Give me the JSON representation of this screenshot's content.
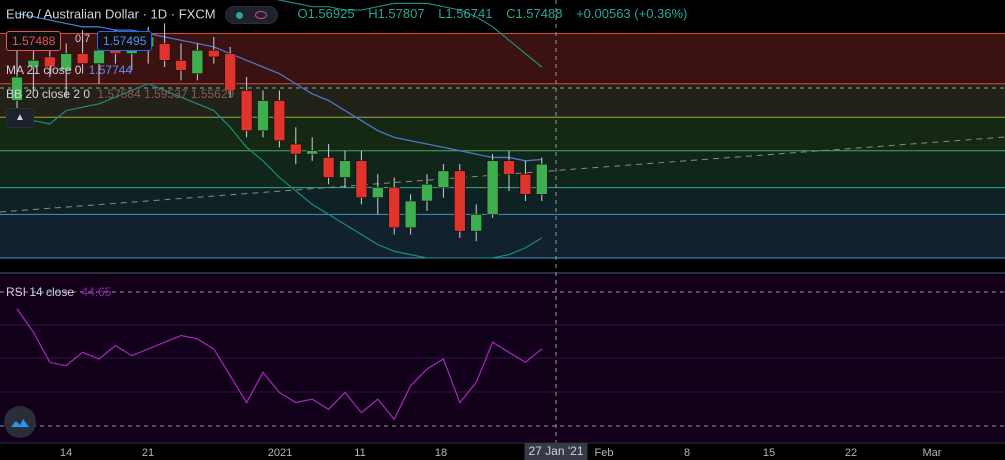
{
  "header": {
    "symbol": "Euro / Australian Dollar",
    "interval": "1D",
    "exchange": "FXCM",
    "open": "O1.56925",
    "high": "H1.57807",
    "low": "L1.56741",
    "close": "C1.57488",
    "change": "+0.00563 (+0.36%)",
    "bid": "1.57488",
    "spread": "0.7",
    "ask": "1.57495"
  },
  "indicators": {
    "ma_label": "MA 21 close 0",
    "ma_value": "1.57744",
    "bb_label": "BB 20 close 2 0",
    "bb_values": "1.57584  1.59537  1.55629",
    "rsi_label": "RSI 14 close",
    "rsi_value": "44.65"
  },
  "colors": {
    "up": "#3fae4f",
    "down": "#e0332c",
    "ma": "#4a78c8",
    "bb": "#1f8a7f",
    "rsi": "#9c27b0"
  },
  "x_axis": {
    "labels": [
      "14",
      "21",
      "2021",
      "11",
      "18",
      "Feb",
      "8",
      "15",
      "22",
      "Mar"
    ],
    "crosshair_label": "27 Jan '21"
  },
  "chart_data": {
    "type": "candlestick",
    "candles": [
      {
        "o": 1.575,
        "h": 1.59,
        "l": 1.57,
        "c": 1.582
      },
      {
        "o": 1.585,
        "h": 1.592,
        "l": 1.578,
        "c": 1.587
      },
      {
        "o": 1.588,
        "h": 1.594,
        "l": 1.582,
        "c": 1.585
      },
      {
        "o": 1.584,
        "h": 1.592,
        "l": 1.576,
        "c": 1.589
      },
      {
        "o": 1.589,
        "h": 1.596,
        "l": 1.583,
        "c": 1.586
      },
      {
        "o": 1.586,
        "h": 1.593,
        "l": 1.58,
        "c": 1.59
      },
      {
        "o": 1.59,
        "h": 1.596,
        "l": 1.586,
        "c": 1.589
      },
      {
        "o": 1.589,
        "h": 1.595,
        "l": 1.584,
        "c": 1.593
      },
      {
        "o": 1.591,
        "h": 1.597,
        "l": 1.586,
        "c": 1.594
      },
      {
        "o": 1.592,
        "h": 1.598,
        "l": 1.585,
        "c": 1.587
      },
      {
        "o": 1.587,
        "h": 1.592,
        "l": 1.581,
        "c": 1.584
      },
      {
        "o": 1.583,
        "h": 1.592,
        "l": 1.581,
        "c": 1.59
      },
      {
        "o": 1.59,
        "h": 1.594,
        "l": 1.586,
        "c": 1.588
      },
      {
        "o": 1.589,
        "h": 1.591,
        "l": 1.576,
        "c": 1.578
      },
      {
        "o": 1.578,
        "h": 1.582,
        "l": 1.564,
        "c": 1.566
      },
      {
        "o": 1.566,
        "h": 1.578,
        "l": 1.564,
        "c": 1.575
      },
      {
        "o": 1.575,
        "h": 1.578,
        "l": 1.561,
        "c": 1.563
      },
      {
        "o": 1.562,
        "h": 1.567,
        "l": 1.556,
        "c": 1.559
      },
      {
        "o": 1.559,
        "h": 1.564,
        "l": 1.557,
        "c": 1.56
      },
      {
        "o": 1.558,
        "h": 1.562,
        "l": 1.55,
        "c": 1.552
      },
      {
        "o": 1.552,
        "h": 1.56,
        "l": 1.549,
        "c": 1.557
      },
      {
        "o": 1.557,
        "h": 1.56,
        "l": 1.544,
        "c": 1.546
      },
      {
        "o": 1.546,
        "h": 1.553,
        "l": 1.541,
        "c": 1.549
      },
      {
        "o": 1.549,
        "h": 1.552,
        "l": 1.535,
        "c": 1.537
      },
      {
        "o": 1.537,
        "h": 1.547,
        "l": 1.535,
        "c": 1.545
      },
      {
        "o": 1.545,
        "h": 1.553,
        "l": 1.542,
        "c": 1.55
      },
      {
        "o": 1.549,
        "h": 1.556,
        "l": 1.546,
        "c": 1.554
      },
      {
        "o": 1.554,
        "h": 1.556,
        "l": 1.534,
        "c": 1.536
      },
      {
        "o": 1.536,
        "h": 1.544,
        "l": 1.533,
        "c": 1.541
      },
      {
        "o": 1.541,
        "h": 1.559,
        "l": 1.54,
        "c": 1.557
      },
      {
        "o": 1.557,
        "h": 1.56,
        "l": 1.548,
        "c": 1.553
      },
      {
        "o": 1.553,
        "h": 1.557,
        "l": 1.545,
        "c": 1.547
      },
      {
        "o": 1.547,
        "h": 1.558,
        "l": 1.545,
        "c": 1.556
      }
    ],
    "ma": [
      1.601,
      1.6,
      1.599,
      1.598,
      1.597,
      1.597,
      1.596,
      1.596,
      1.595,
      1.594,
      1.593,
      1.592,
      1.591,
      1.589,
      1.587,
      1.585,
      1.583,
      1.58,
      1.577,
      1.575,
      1.572,
      1.569,
      1.566,
      1.564,
      1.563,
      1.562,
      1.561,
      1.56,
      1.559,
      1.558,
      1.558,
      1.557,
      1.5574
    ],
    "bb_upper": [
      1.622,
      1.622,
      1.622,
      1.621,
      1.621,
      1.62,
      1.62,
      1.619,
      1.618,
      1.617,
      1.616,
      1.614,
      1.612,
      1.61,
      1.608,
      1.606,
      1.605,
      1.604,
      1.603,
      1.603,
      1.602,
      1.602,
      1.603,
      1.604,
      1.604,
      1.604,
      1.603,
      1.602,
      1.6,
      1.597,
      1.593,
      1.589,
      1.585
    ],
    "bb_lower": [
      1.571,
      1.569,
      1.568,
      1.572,
      1.573,
      1.574,
      1.576,
      1.578,
      1.58,
      1.578,
      1.576,
      1.574,
      1.572,
      1.567,
      1.561,
      1.557,
      1.552,
      1.548,
      1.544,
      1.541,
      1.538,
      1.535,
      1.532,
      1.53,
      1.529,
      1.528,
      1.528,
      1.528,
      1.528,
      1.528,
      1.529,
      1.531,
      1.534
    ],
    "rsi": [
      65,
      58,
      49,
      48,
      52,
      50,
      54,
      51,
      53,
      55,
      57,
      56,
      53,
      45,
      37,
      46,
      40,
      37,
      38,
      35,
      40,
      34,
      38,
      32,
      42,
      47,
      50,
      37,
      43,
      55,
      52,
      49,
      53
    ],
    "levels": [
      1.595,
      1.58,
      1.57,
      1.56,
      1.549,
      1.541,
      1.528
    ],
    "ylim": [
      1.525,
      1.605
    ]
  }
}
